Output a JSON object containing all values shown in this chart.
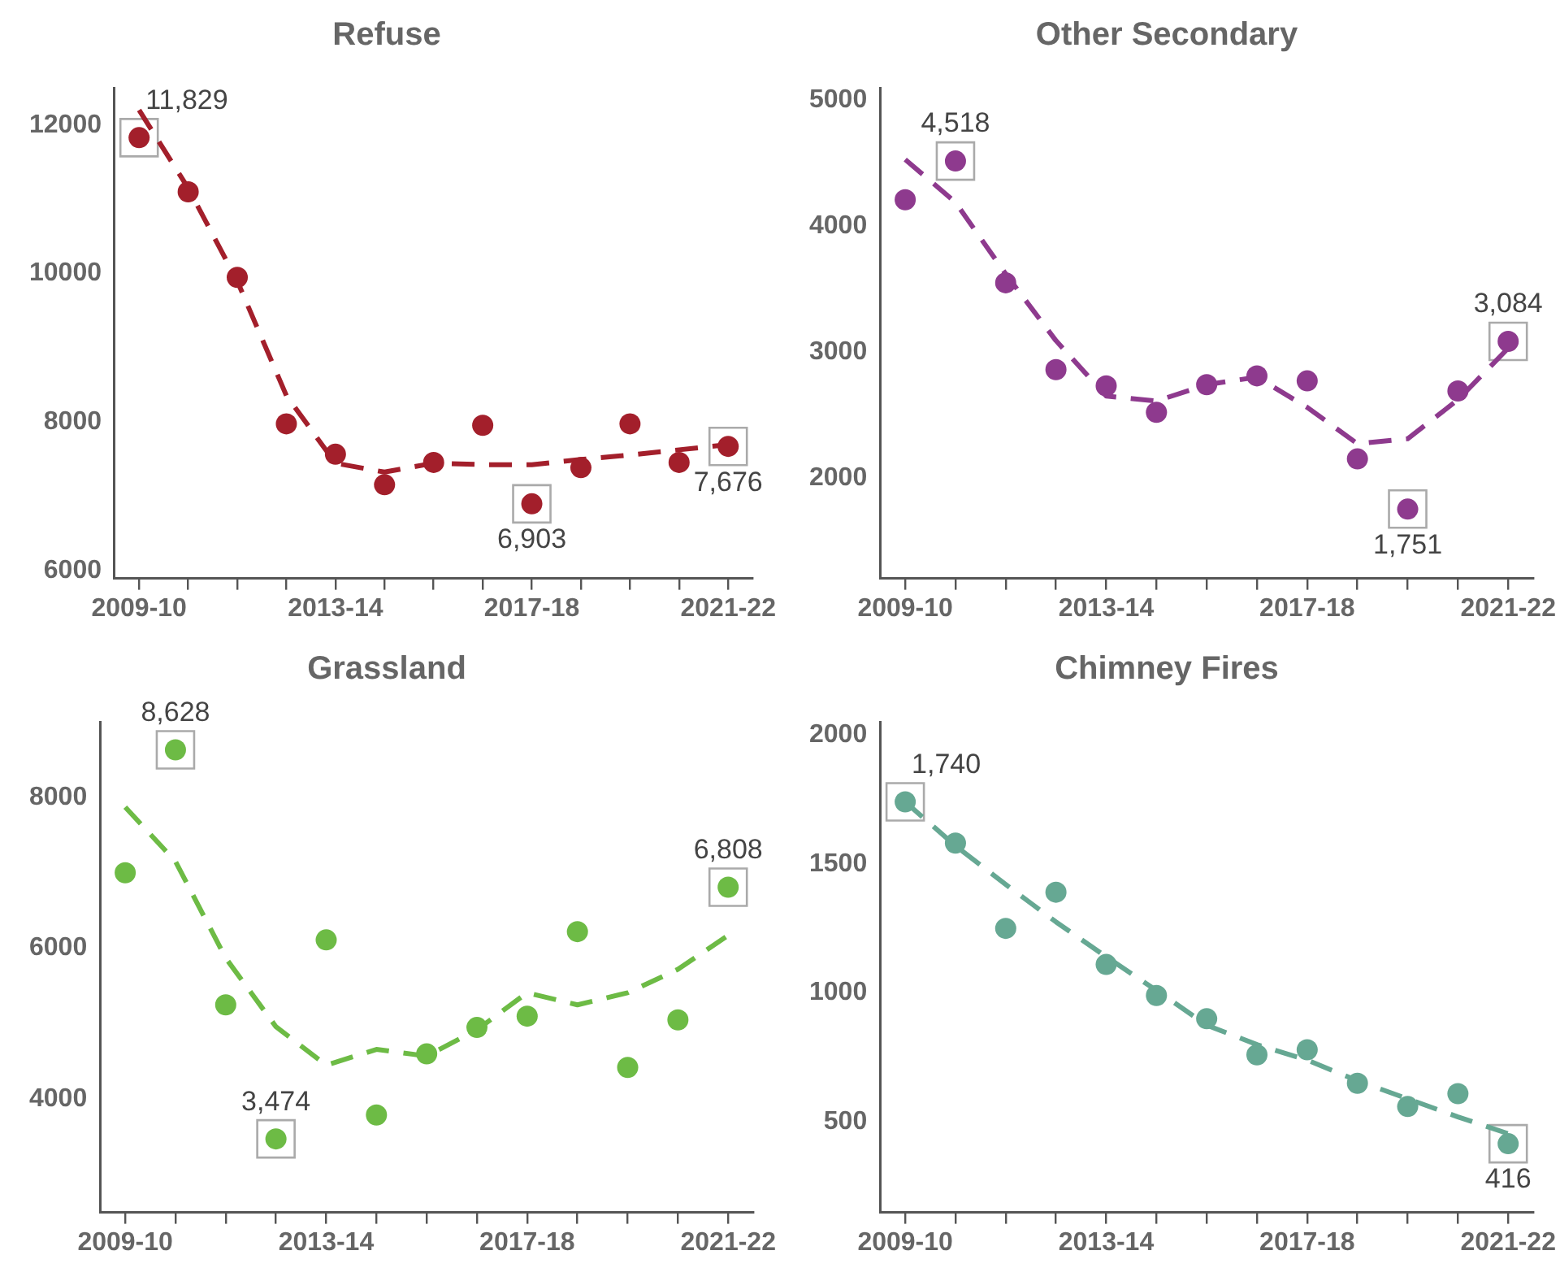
{
  "chart_data": [
    {
      "type": "scatter",
      "title": "Refuse",
      "categories": [
        "2009-10",
        null,
        null,
        null,
        "2013-14",
        null,
        null,
        null,
        "2017-18",
        null,
        null,
        null,
        "2021-22"
      ],
      "ylim": [
        5900,
        12500
      ],
      "yticks": [
        6000,
        8000,
        10000,
        12000
      ],
      "grid": false,
      "legend": false,
      "series": [
        {
          "type": "scatter",
          "marker": "circle",
          "color": "#a31f2b",
          "values": [
            11829,
            11100,
            9950,
            7980,
            7570,
            7160,
            7460,
            7960,
            6903,
            7390,
            7980,
            7460,
            7676
          ]
        },
        {
          "type": "line",
          "marker": "none",
          "line_style": "dashed",
          "color": "#a31f2b",
          "values": [
            12200,
            11150,
            9900,
            8360,
            7450,
            7330,
            7450,
            7430,
            7430,
            7500,
            7560,
            7630,
            7700
          ]
        }
      ],
      "annotations": [
        {
          "text": "11,829",
          "x": "2009-10",
          "y": 11829
        },
        {
          "text": "6,903",
          "x": "2017-18",
          "y": 6903
        },
        {
          "text": "7,676",
          "x": "2021-22",
          "y": 7676
        }
      ]
    },
    {
      "type": "scatter",
      "title": "Other Secondary",
      "categories": [
        "2009-10",
        null,
        null,
        null,
        "2013-14",
        null,
        null,
        null,
        "2017-18",
        null,
        null,
        null,
        "2021-22"
      ],
      "ylim": [
        1200,
        5100
      ],
      "yticks": [
        2000,
        3000,
        4000,
        5000
      ],
      "grid": false,
      "legend": false,
      "series": [
        {
          "type": "scatter",
          "marker": "circle",
          "color": "#8e3a8e",
          "values": [
            4210,
            4518,
            3550,
            2860,
            2730,
            2520,
            2740,
            2810,
            2770,
            2150,
            1751,
            2690,
            3084
          ]
        },
        {
          "type": "line",
          "marker": "none",
          "line_style": "dashed",
          "color": "#8e3a8e",
          "values": [
            4530,
            4190,
            3620,
            3090,
            2650,
            2610,
            2740,
            2800,
            2560,
            2270,
            2310,
            2620,
            3030
          ]
        }
      ],
      "annotations": [
        {
          "text": "4,518",
          "y": 4518
        },
        {
          "text": "1,751",
          "y": 1751
        },
        {
          "text": "3,084",
          "x": "2021-22",
          "y": 3084
        }
      ]
    },
    {
      "type": "scatter",
      "title": "Grassland",
      "categories": [
        "2009-10",
        null,
        null,
        null,
        "2013-14",
        null,
        null,
        null,
        "2017-18",
        null,
        null,
        null,
        "2021-22"
      ],
      "ylim": [
        2500,
        9000
      ],
      "yticks": [
        4000,
        6000,
        8000
      ],
      "grid": false,
      "legend": false,
      "series": [
        {
          "type": "scatter",
          "marker": "circle",
          "color": "#6dbb45",
          "values": [
            7000,
            8628,
            5250,
            3474,
            6110,
            3790,
            4600,
            4950,
            5100,
            6220,
            4420,
            5050,
            6808
          ]
        },
        {
          "type": "line",
          "marker": "none",
          "line_style": "dashed",
          "color": "#6dbb45",
          "values": [
            7870,
            7150,
            5870,
            4960,
            4450,
            4660,
            4570,
            4920,
            5410,
            5250,
            5410,
            5720,
            6170
          ]
        }
      ],
      "annotations": [
        {
          "text": "8,628",
          "y": 8628
        },
        {
          "text": "3,474",
          "y": 3474
        },
        {
          "text": "6,808",
          "x": "2021-22",
          "y": 6808
        }
      ]
    },
    {
      "type": "scatter",
      "title": "Chimney Fires",
      "categories": [
        "2009-10",
        null,
        null,
        null,
        "2013-14",
        null,
        null,
        null,
        "2017-18",
        null,
        null,
        null,
        "2021-22"
      ],
      "ylim": [
        150,
        2050
      ],
      "yticks": [
        500,
        1000,
        1500,
        2000
      ],
      "grid": false,
      "legend": false,
      "series": [
        {
          "type": "scatter",
          "marker": "circle",
          "color": "#66a893",
          "values": [
            1740,
            1580,
            1250,
            1390,
            1110,
            990,
            900,
            760,
            780,
            650,
            560,
            610,
            416
          ]
        },
        {
          "type": "line",
          "marker": "none",
          "line_style": "dashed",
          "color": "#66a893",
          "values": [
            1740,
            1570,
            1420,
            1275,
            1140,
            1010,
            875,
            800,
            740,
            660,
            590,
            520,
            455
          ]
        }
      ],
      "annotations": [
        {
          "text": "1,740",
          "x": "2009-10",
          "y": 1740
        },
        {
          "text": "416",
          "x": "2021-22",
          "y": 416
        }
      ]
    }
  ]
}
